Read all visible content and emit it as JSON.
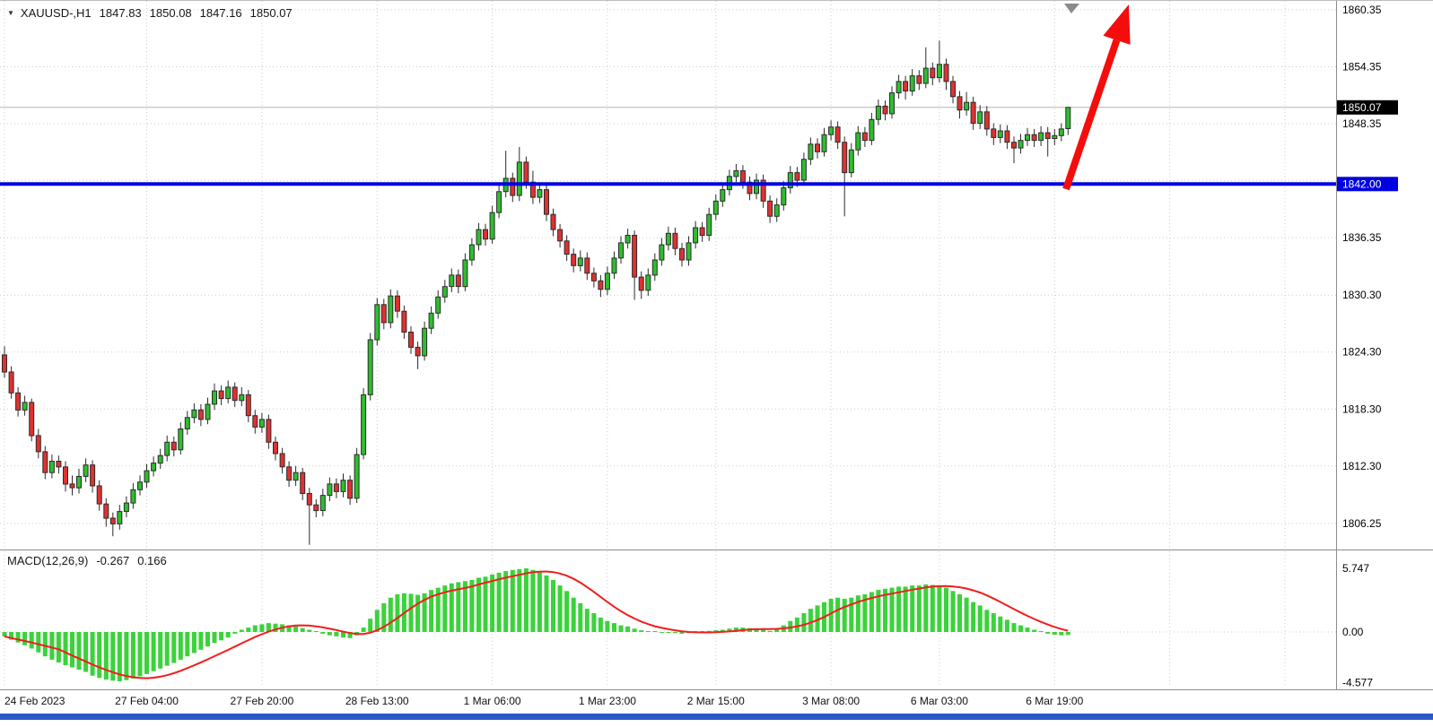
{
  "icons": {
    "ohlc_expander": "▼"
  },
  "header": {
    "symbol_period": "XAUUSD-,H1",
    "ohlc": {
      "open": "1847.83",
      "high": "1850.08",
      "low": "1847.16",
      "close": "1850.07"
    }
  },
  "colors": {
    "bull": "#2ebe2e",
    "bear": "#e03131",
    "outline": "#2b2b2b",
    "grid": "#cccccc",
    "bid_line": "#b4b4b4",
    "bid_tag_bg": "#000000",
    "hline": "#0000e0",
    "macd_hist": "#3bd23b",
    "macd_signal": "#f21d1d",
    "arrow": "#f50c0c",
    "axis_text": "#000000",
    "scroll_marker": "#8a8a8a",
    "bottom_bar": "#2b57c8"
  },
  "chart_data": {
    "type": "candlestick",
    "title": "XAUUSD H1 candlestick chart with MACD(12,26,9)",
    "symbol": "XAUUSD-",
    "timeframe": "H1",
    "price_range": [
      1803.0,
      1861.3
    ],
    "price_axis": {
      "ticks": [
        {
          "label": "1860.35",
          "price": 1860.35
        },
        {
          "label": "1854.35",
          "price": 1854.35
        },
        {
          "label": "1848.35",
          "price": 1848.35
        },
        {
          "label": "",
          "price": 1842.35
        },
        {
          "label": "1836.35",
          "price": 1836.35
        },
        {
          "label": "1830.30",
          "price": 1830.3
        },
        {
          "label": "1824.30",
          "price": 1824.3
        },
        {
          "label": "1818.30",
          "price": 1818.3
        },
        {
          "label": "1812.30",
          "price": 1812.3
        },
        {
          "label": "1806.25",
          "price": 1806.25
        }
      ]
    },
    "time_axis": {
      "labels": [
        {
          "text": "24 Feb 2023",
          "index": 0,
          "align": "left"
        },
        {
          "text": "27 Feb 04:00",
          "index": 21
        },
        {
          "text": "27 Feb 20:00",
          "index": 38
        },
        {
          "text": "28 Feb 13:00",
          "index": 55
        },
        {
          "text": "1 Mar 06:00",
          "index": 72
        },
        {
          "text": "1 Mar 23:00",
          "index": 89
        },
        {
          "text": "2 Mar 15:00",
          "index": 105
        },
        {
          "text": "3 Mar 08:00",
          "index": 122
        },
        {
          "text": "6 Mar 03:00",
          "index": 138
        },
        {
          "text": "6 Mar 19:00",
          "index": 155
        }
      ],
      "grid_extra_indices": [
        172,
        189
      ]
    },
    "bid_line": {
      "price": 1850.07,
      "label": "1850.07"
    },
    "horizontal_line": {
      "price": 1842.0,
      "label": "1842.00"
    },
    "annotations": {
      "up_arrow": {
        "from_index": 157,
        "from_price": 1842.0,
        "direction": "up",
        "color": "red"
      }
    },
    "candles": [
      [
        1824.0,
        1824.9,
        1821.6,
        1822.2
      ],
      [
        1822.2,
        1822.8,
        1819.4,
        1820.0
      ],
      [
        1820.0,
        1820.6,
        1817.5,
        1818.2
      ],
      [
        1818.2,
        1819.7,
        1817.6,
        1819.0
      ],
      [
        1819.0,
        1819.4,
        1814.9,
        1815.5
      ],
      [
        1815.5,
        1816.2,
        1813.1,
        1813.8
      ],
      [
        1813.8,
        1814.4,
        1810.9,
        1811.6
      ],
      [
        1811.6,
        1813.5,
        1811.0,
        1812.8
      ],
      [
        1812.8,
        1813.4,
        1811.5,
        1812.2
      ],
      [
        1812.2,
        1812.8,
        1809.6,
        1810.4
      ],
      [
        1810.4,
        1811.3,
        1809.2,
        1810.0
      ],
      [
        1810.0,
        1812.0,
        1809.4,
        1811.2
      ],
      [
        1811.2,
        1813.1,
        1810.6,
        1812.4
      ],
      [
        1812.4,
        1812.9,
        1809.5,
        1810.2
      ],
      [
        1810.2,
        1810.8,
        1807.6,
        1808.3
      ],
      [
        1808.3,
        1808.9,
        1805.9,
        1806.8
      ],
      [
        1806.8,
        1807.4,
        1804.9,
        1806.2
      ],
      [
        1806.2,
        1808.2,
        1805.6,
        1807.5
      ],
      [
        1807.5,
        1809.1,
        1806.9,
        1808.4
      ],
      [
        1808.4,
        1810.5,
        1807.8,
        1809.8
      ],
      [
        1809.8,
        1811.3,
        1809.2,
        1810.6
      ],
      [
        1810.6,
        1812.5,
        1810.0,
        1811.8
      ],
      [
        1811.8,
        1813.3,
        1811.2,
        1812.6
      ],
      [
        1812.6,
        1814.1,
        1812.0,
        1813.4
      ],
      [
        1813.4,
        1815.5,
        1812.8,
        1814.8
      ],
      [
        1814.8,
        1815.4,
        1813.3,
        1814.0
      ],
      [
        1814.0,
        1816.9,
        1813.5,
        1816.2
      ],
      [
        1816.2,
        1818.1,
        1815.6,
        1817.4
      ],
      [
        1817.4,
        1818.9,
        1816.8,
        1818.2
      ],
      [
        1818.2,
        1818.8,
        1816.5,
        1817.2
      ],
      [
        1817.2,
        1819.5,
        1816.7,
        1818.8
      ],
      [
        1818.8,
        1821.0,
        1818.2,
        1820.2
      ],
      [
        1820.2,
        1820.8,
        1818.7,
        1819.4
      ],
      [
        1819.4,
        1821.3,
        1818.9,
        1820.6
      ],
      [
        1820.6,
        1821.1,
        1818.5,
        1819.2
      ],
      [
        1819.2,
        1820.6,
        1818.6,
        1819.8
      ],
      [
        1819.8,
        1820.3,
        1816.9,
        1817.6
      ],
      [
        1817.6,
        1818.2,
        1815.7,
        1816.4
      ],
      [
        1816.4,
        1817.9,
        1815.8,
        1817.2
      ],
      [
        1817.2,
        1817.7,
        1814.1,
        1814.8
      ],
      [
        1814.8,
        1815.4,
        1812.9,
        1813.6
      ],
      [
        1813.6,
        1814.2,
        1811.5,
        1812.2
      ],
      [
        1812.2,
        1812.8,
        1810.1,
        1810.8
      ],
      [
        1810.8,
        1812.3,
        1810.2,
        1811.6
      ],
      [
        1811.6,
        1812.1,
        1808.7,
        1809.4
      ],
      [
        1809.4,
        1810.0,
        1804.0,
        1808.2
      ],
      [
        1808.2,
        1808.8,
        1806.9,
        1807.6
      ],
      [
        1807.6,
        1809.9,
        1807.0,
        1809.2
      ],
      [
        1809.2,
        1811.1,
        1808.6,
        1810.4
      ],
      [
        1810.4,
        1811.0,
        1808.9,
        1809.6
      ],
      [
        1809.6,
        1811.5,
        1809.0,
        1810.8
      ],
      [
        1810.8,
        1811.3,
        1808.2,
        1808.9
      ],
      [
        1808.9,
        1814.2,
        1808.4,
        1813.5
      ],
      [
        1813.5,
        1820.5,
        1813.0,
        1819.8
      ],
      [
        1819.8,
        1826.3,
        1819.2,
        1825.6
      ],
      [
        1825.6,
        1830.0,
        1825.0,
        1829.3
      ],
      [
        1829.3,
        1829.9,
        1826.7,
        1827.4
      ],
      [
        1827.4,
        1830.9,
        1826.8,
        1830.2
      ],
      [
        1830.2,
        1830.8,
        1827.9,
        1828.6
      ],
      [
        1828.6,
        1829.2,
        1825.7,
        1826.4
      ],
      [
        1826.4,
        1827.0,
        1824.1,
        1824.8
      ],
      [
        1824.8,
        1825.4,
        1822.5,
        1823.9
      ],
      [
        1823.9,
        1827.5,
        1823.4,
        1826.8
      ],
      [
        1826.8,
        1829.1,
        1826.2,
        1828.4
      ],
      [
        1828.4,
        1830.8,
        1827.8,
        1830.1
      ],
      [
        1830.1,
        1831.9,
        1829.5,
        1831.2
      ],
      [
        1831.2,
        1833.1,
        1830.6,
        1832.4
      ],
      [
        1832.4,
        1833.0,
        1830.5,
        1831.2
      ],
      [
        1831.2,
        1834.7,
        1830.7,
        1834.0
      ],
      [
        1834.0,
        1836.3,
        1833.4,
        1835.6
      ],
      [
        1835.6,
        1837.9,
        1835.0,
        1837.2
      ],
      [
        1837.2,
        1837.8,
        1835.5,
        1836.2
      ],
      [
        1836.2,
        1839.7,
        1835.7,
        1839.0
      ],
      [
        1839.0,
        1841.9,
        1838.4,
        1841.2
      ],
      [
        1841.2,
        1845.5,
        1840.6,
        1842.6
      ],
      [
        1842.6,
        1843.2,
        1840.1,
        1840.8
      ],
      [
        1840.8,
        1845.9,
        1840.2,
        1844.3
      ],
      [
        1844.3,
        1844.9,
        1841.5,
        1842.2
      ],
      [
        1842.2,
        1843.4,
        1839.9,
        1840.6
      ],
      [
        1840.6,
        1842.1,
        1840.0,
        1841.4
      ],
      [
        1841.4,
        1842.0,
        1838.1,
        1838.8
      ],
      [
        1838.8,
        1839.4,
        1836.5,
        1837.2
      ],
      [
        1837.2,
        1837.8,
        1835.3,
        1836.0
      ],
      [
        1836.0,
        1836.6,
        1833.9,
        1834.6
      ],
      [
        1834.6,
        1835.2,
        1832.7,
        1833.4
      ],
      [
        1833.4,
        1835.0,
        1832.8,
        1834.2
      ],
      [
        1834.2,
        1834.8,
        1831.9,
        1832.6
      ],
      [
        1832.6,
        1833.2,
        1831.1,
        1831.8
      ],
      [
        1831.8,
        1832.4,
        1830.1,
        1830.9
      ],
      [
        1830.9,
        1833.3,
        1830.3,
        1832.6
      ],
      [
        1832.6,
        1834.9,
        1832.0,
        1834.2
      ],
      [
        1834.2,
        1836.5,
        1833.6,
        1835.8
      ],
      [
        1835.8,
        1837.3,
        1835.2,
        1836.6
      ],
      [
        1836.6,
        1837.1,
        1829.8,
        1832.2
      ],
      [
        1832.2,
        1832.8,
        1829.9,
        1830.8
      ],
      [
        1830.8,
        1833.1,
        1830.2,
        1832.4
      ],
      [
        1832.4,
        1834.7,
        1831.8,
        1834.0
      ],
      [
        1834.0,
        1836.3,
        1833.4,
        1835.6
      ],
      [
        1835.6,
        1837.5,
        1835.0,
        1836.8
      ],
      [
        1836.8,
        1837.4,
        1834.5,
        1835.2
      ],
      [
        1835.2,
        1835.8,
        1833.3,
        1834.0
      ],
      [
        1834.0,
        1836.5,
        1833.4,
        1835.8
      ],
      [
        1835.8,
        1838.1,
        1835.2,
        1837.4
      ],
      [
        1837.4,
        1838.0,
        1835.9,
        1836.6
      ],
      [
        1836.6,
        1839.5,
        1836.0,
        1838.8
      ],
      [
        1838.8,
        1840.9,
        1838.2,
        1840.2
      ],
      [
        1840.2,
        1842.1,
        1839.6,
        1841.4
      ],
      [
        1841.4,
        1843.5,
        1840.8,
        1842.8
      ],
      [
        1842.8,
        1844.1,
        1842.2,
        1843.4
      ],
      [
        1843.4,
        1844.0,
        1841.5,
        1842.2
      ],
      [
        1842.2,
        1842.8,
        1840.3,
        1841.0
      ],
      [
        1841.0,
        1843.1,
        1840.4,
        1842.4
      ],
      [
        1842.4,
        1843.0,
        1839.5,
        1840.2
      ],
      [
        1840.2,
        1840.8,
        1837.9,
        1838.6
      ],
      [
        1838.6,
        1840.5,
        1838.0,
        1839.8
      ],
      [
        1839.8,
        1842.3,
        1839.2,
        1841.6
      ],
      [
        1841.6,
        1843.9,
        1841.0,
        1843.2
      ],
      [
        1843.2,
        1843.8,
        1841.7,
        1842.4
      ],
      [
        1842.4,
        1845.3,
        1841.9,
        1844.6
      ],
      [
        1844.6,
        1846.9,
        1844.0,
        1846.2
      ],
      [
        1846.2,
        1846.8,
        1844.7,
        1845.4
      ],
      [
        1845.4,
        1847.9,
        1844.9,
        1847.2
      ],
      [
        1847.2,
        1848.7,
        1846.6,
        1848.0
      ],
      [
        1848.0,
        1848.6,
        1845.7,
        1846.4
      ],
      [
        1846.4,
        1847.0,
        1838.6,
        1843.2
      ],
      [
        1843.2,
        1846.3,
        1842.7,
        1845.6
      ],
      [
        1845.6,
        1848.1,
        1845.0,
        1847.4
      ],
      [
        1847.4,
        1848.0,
        1845.9,
        1846.6
      ],
      [
        1846.6,
        1849.5,
        1846.1,
        1848.8
      ],
      [
        1848.8,
        1850.9,
        1848.2,
        1850.2
      ],
      [
        1850.2,
        1850.8,
        1848.7,
        1849.4
      ],
      [
        1849.4,
        1852.3,
        1848.9,
        1851.6
      ],
      [
        1851.6,
        1853.5,
        1851.0,
        1852.8
      ],
      [
        1852.8,
        1853.4,
        1850.9,
        1851.8
      ],
      [
        1851.8,
        1854.1,
        1851.3,
        1853.4
      ],
      [
        1853.4,
        1854.0,
        1851.9,
        1852.6
      ],
      [
        1852.6,
        1856.4,
        1852.1,
        1854.2
      ],
      [
        1854.2,
        1854.8,
        1852.4,
        1853.2
      ],
      [
        1853.2,
        1857.1,
        1852.7,
        1854.6
      ],
      [
        1854.6,
        1855.2,
        1851.9,
        1852.8
      ],
      [
        1852.8,
        1853.4,
        1850.5,
        1851.2
      ],
      [
        1851.2,
        1851.8,
        1848.9,
        1849.8
      ],
      [
        1849.8,
        1851.7,
        1849.2,
        1850.6
      ],
      [
        1850.6,
        1851.2,
        1847.7,
        1848.4
      ],
      [
        1848.4,
        1850.3,
        1847.8,
        1849.6
      ],
      [
        1849.6,
        1850.2,
        1847.1,
        1847.8
      ],
      [
        1847.8,
        1848.4,
        1846.1,
        1846.9
      ],
      [
        1846.9,
        1848.3,
        1846.3,
        1847.6
      ],
      [
        1847.6,
        1848.2,
        1845.7,
        1846.4
      ],
      [
        1846.4,
        1847.0,
        1844.2,
        1845.8
      ],
      [
        1845.8,
        1847.3,
        1845.2,
        1846.6
      ],
      [
        1846.6,
        1847.9,
        1846.0,
        1847.2
      ],
      [
        1847.2,
        1847.8,
        1845.9,
        1846.6
      ],
      [
        1846.6,
        1848.1,
        1846.0,
        1847.4
      ],
      [
        1847.4,
        1848.0,
        1844.9,
        1846.8
      ],
      [
        1846.8,
        1847.8,
        1846.1,
        1847.1
      ],
      [
        1847.1,
        1848.4,
        1846.5,
        1847.8
      ],
      [
        1847.83,
        1850.08,
        1847.16,
        1850.07
      ]
    ],
    "macd": {
      "name": "MACD(12,26,9)",
      "macd_value": "-0.267",
      "signal_value": "0.166",
      "signal_period": 9,
      "axis_ticks": [
        {
          "label": "5.747",
          "value": 5.747
        },
        {
          "label": "0.00",
          "value": 0
        },
        {
          "label": "-4.577",
          "value": -4.577
        }
      ],
      "histogram": [
        -0.4,
        -0.7,
        -0.95,
        -1.2,
        -1.5,
        -1.85,
        -2.2,
        -2.5,
        -2.75,
        -3.0,
        -3.2,
        -3.4,
        -3.6,
        -3.95,
        -4.15,
        -4.3,
        -4.4,
        -4.45,
        -4.35,
        -4.2,
        -4.0,
        -3.8,
        -3.55,
        -3.3,
        -3.05,
        -2.8,
        -2.5,
        -2.2,
        -1.9,
        -1.6,
        -1.3,
        -1.0,
        -0.75,
        -0.5,
        -0.15,
        0.2,
        0.4,
        0.6,
        0.7,
        0.8,
        0.75,
        0.7,
        0.6,
        0.5,
        0.35,
        0.2,
        0.0,
        -0.15,
        -0.3,
        -0.4,
        -0.5,
        -0.55,
        -0.3,
        0.4,
        1.2,
        2.0,
        2.6,
        3.1,
        3.4,
        3.5,
        3.45,
        3.35,
        3.5,
        3.8,
        4.0,
        4.2,
        4.4,
        4.5,
        4.6,
        4.7,
        4.9,
        5.0,
        5.2,
        5.35,
        5.5,
        5.6,
        5.68,
        5.75,
        5.6,
        5.4,
        5.1,
        4.7,
        4.2,
        3.7,
        3.1,
        2.6,
        2.1,
        1.7,
        1.3,
        1.0,
        0.8,
        0.6,
        0.5,
        0.3,
        0.15,
        0.05,
        0.0,
        -0.05,
        -0.1,
        -0.1,
        -0.15,
        -0.1,
        0.0,
        0.05,
        0.1,
        0.15,
        0.2,
        0.3,
        0.4,
        0.4,
        0.35,
        0.3,
        0.2,
        0.1,
        0.3,
        0.6,
        1.0,
        1.3,
        1.7,
        2.1,
        2.4,
        2.7,
        3.0,
        3.1,
        3.0,
        3.1,
        3.3,
        3.4,
        3.6,
        3.8,
        3.9,
        4.0,
        4.1,
        4.1,
        4.2,
        4.2,
        4.3,
        4.25,
        4.2,
        4.0,
        3.7,
        3.4,
        3.1,
        2.7,
        2.4,
        2.0,
        1.7,
        1.4,
        1.1,
        0.8,
        0.6,
        0.4,
        0.2,
        0.0,
        -0.15,
        -0.25,
        -0.3,
        -0.267
      ]
    }
  }
}
